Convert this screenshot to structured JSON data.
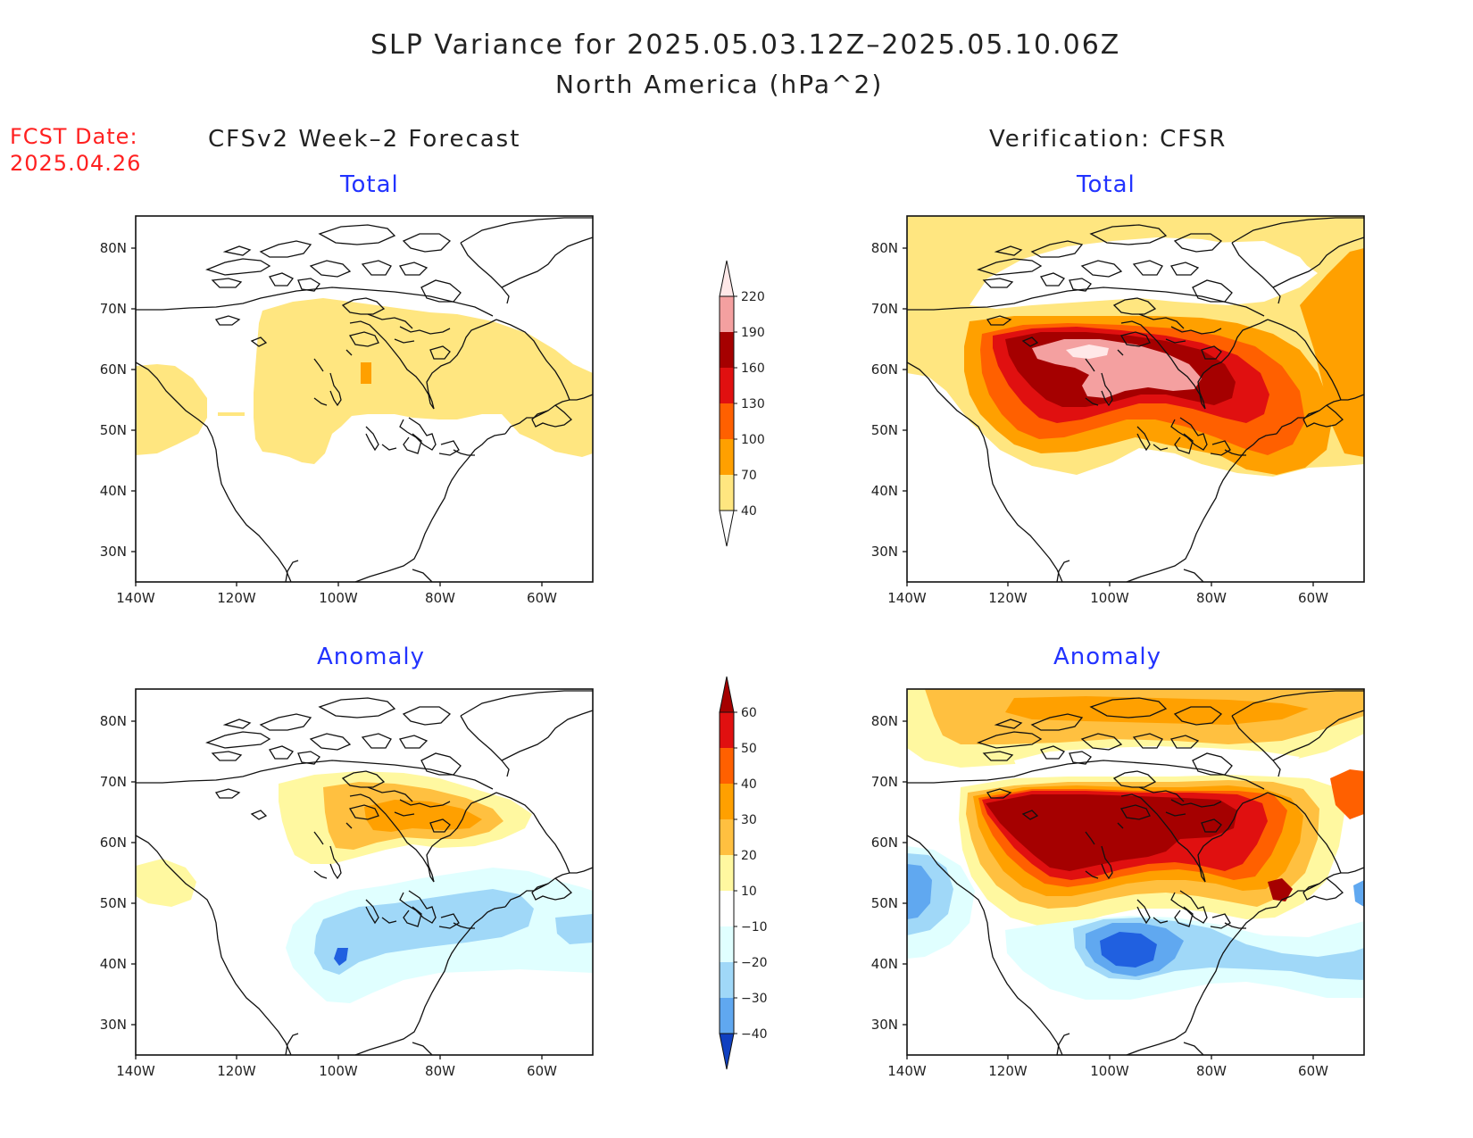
{
  "header": {
    "title": "SLP Variance for 2025.05.03.12Z–2025.05.10.06Z",
    "subtitle": "North America (hPa^2)",
    "fcst_date_label": "FCST Date:",
    "fcst_date_value": "2025.04.26"
  },
  "columns": {
    "left": "CFSv2 Week–2 Forecast",
    "right": "Verification: CFSR"
  },
  "panels": {
    "total_label": "Total",
    "anomaly_label": "Anomaly"
  },
  "axes": {
    "lat_labels": [
      "80N",
      "70N",
      "60N",
      "50N",
      "40N",
      "30N"
    ],
    "lon_labels": [
      "140W",
      "120W",
      "100W",
      "80W",
      "60W"
    ]
  },
  "colorbar_total": {
    "levels": [
      "220",
      "190",
      "160",
      "130",
      "100",
      "70",
      "40"
    ],
    "colors": [
      "#ffe8e8",
      "#f4a0a0",
      "#a50000",
      "#e01010",
      "#ff6000",
      "#ffa000",
      "#ffe680"
    ]
  },
  "colorbar_anomaly": {
    "levels": [
      "60",
      "50",
      "40",
      "30",
      "20",
      "10",
      "−10",
      "−20",
      "−30",
      "−40"
    ],
    "colors": [
      "#a50000",
      "#e01010",
      "#ff6000",
      "#ffa000",
      "#ffc040",
      "#fff8a0",
      "#ffffff",
      "#e0ffff",
      "#a0d8f8",
      "#60a8f0",
      "#2060e0",
      "#1040c0"
    ]
  }
}
